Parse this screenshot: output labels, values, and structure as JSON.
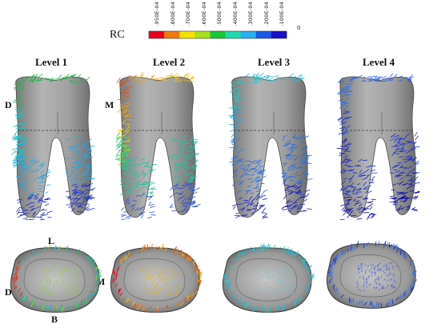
{
  "legend": {
    "label": "RC",
    "ticks": [
      ".950E-04",
      ".800E-04",
      ".700E-04",
      ".600E-04",
      ".500E-04",
      ".400E-04",
      ".300E-04",
      ".200E-04",
      ".100E-04"
    ],
    "zero": "0",
    "colors": [
      "#e8001a",
      "#f07a10",
      "#f5e200",
      "#a8e01a",
      "#18c838",
      "#20d8b0",
      "#28b0f0",
      "#1a58e8",
      "#1a10c8"
    ]
  },
  "levels": [
    "Level 1",
    "Level 2",
    "Level 3",
    "Level 4"
  ],
  "directions": {
    "distal": "D",
    "mesial": "M",
    "lingual": "L",
    "buccal": "B",
    "mesial_lower": "M",
    "distal_lower": "D"
  },
  "colors": {
    "tooth_gray": "#9a9a9a",
    "tooth_dark": "#6c6c6c",
    "background": "#ffffff"
  }
}
